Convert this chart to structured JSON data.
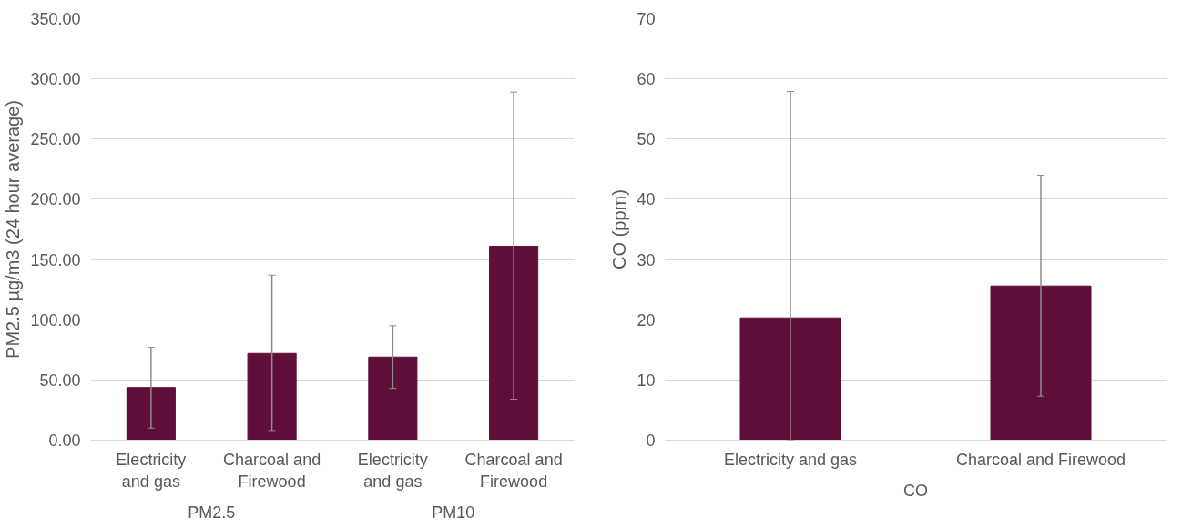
{
  "chart_data": [
    {
      "type": "bar",
      "ylabel": "PM2.5 µg/m3 (24 hour average)",
      "categories": [
        "Electricity and gas",
        "Charcoal and Firewood",
        "Electricity and gas",
        "Charcoal and Firewood"
      ],
      "values": [
        43.7,
        72,
        69,
        161
      ],
      "color": "#5f0f3a",
      "errors": [
        [
          10,
          77
        ],
        [
          8,
          137
        ],
        [
          43,
          95
        ],
        [
          34,
          289
        ]
      ],
      "annotations": [
        "PM2.5",
        "PM10"
      ],
      "ylim": [
        0,
        350
      ],
      "yticks": [
        {
          "value": 0,
          "label": "0.00"
        },
        {
          "value": 50,
          "label": "50.00"
        },
        {
          "value": 100,
          "label": "100.00"
        },
        {
          "value": 150,
          "label": "150.00"
        },
        {
          "value": 200,
          "label": "200.00"
        },
        {
          "value": 250,
          "label": "250.00"
        },
        {
          "value": 300,
          "label": "300.00"
        },
        {
          "value": 350,
          "label": "350.00"
        }
      ],
      "grid": "y"
    },
    {
      "type": "bar",
      "ylabel": "CO (ppm)",
      "categories": [
        "Electricity and gas",
        "Charcoal and Firewood"
      ],
      "values": [
        20.3,
        25.6
      ],
      "color": "#5f0f3a",
      "errors": [
        [
          0,
          57.9
        ],
        [
          7.3,
          44
        ]
      ],
      "annotations": [
        "CO"
      ],
      "ylim": [
        0,
        70
      ],
      "yticks": [
        0,
        10,
        20,
        30,
        40,
        50,
        60,
        70
      ],
      "grid": "y"
    }
  ]
}
